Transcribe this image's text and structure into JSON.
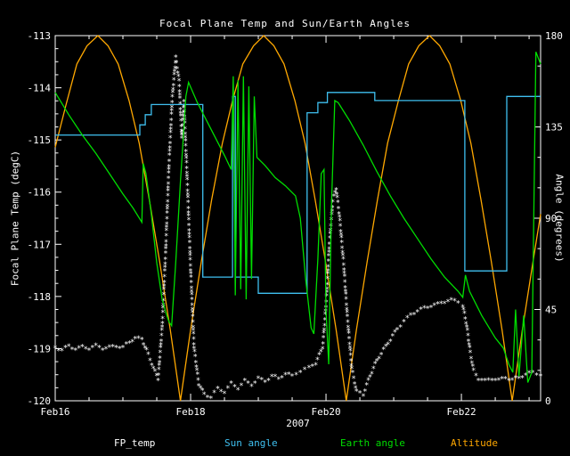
{
  "chart_data": {
    "type": "line",
    "title": "Focal Plane Temp and Sun/Earth Angles",
    "xlabel": "2007",
    "ylabel_left": "Focal Plane Temp (degC)",
    "ylabel_right": "Angle (degrees)",
    "x_range": [
      0,
      7.17
    ],
    "x_ticks": [
      {
        "t": 0,
        "label": "Feb16"
      },
      {
        "t": 2,
        "label": "Feb18"
      },
      {
        "t": 4,
        "label": "Feb20"
      },
      {
        "t": 6,
        "label": "Feb22"
      }
    ],
    "y_left_range": [
      -120,
      -113
    ],
    "y_left_ticks": [
      -113,
      -114,
      -115,
      -116,
      -117,
      -118,
      -119,
      -120
    ],
    "y_right_range": [
      0,
      180
    ],
    "y_right_ticks": [
      0,
      45,
      90,
      135,
      180
    ],
    "grid": false,
    "legend_position": "bottom",
    "legend": [
      {
        "label": "FP_temp",
        "color": "#ffffff"
      },
      {
        "label": "Sun angle",
        "color": "#3fc0f0"
      },
      {
        "label": "Earth angle",
        "color": "#00dd00"
      },
      {
        "label": "Altitude",
        "color": "#ffa800"
      }
    ],
    "series": [
      {
        "name": "Altitude",
        "color": "#ffa800",
        "axis": "right",
        "style": "line",
        "points": [
          [
            0,
            125
          ],
          [
            0.16,
            146
          ],
          [
            0.32,
            166
          ],
          [
            0.47,
            175
          ],
          [
            0.63,
            180
          ],
          [
            0.78,
            175
          ],
          [
            0.93,
            166
          ],
          [
            1.09,
            148
          ],
          [
            1.24,
            127
          ],
          [
            1.39,
            99
          ],
          [
            1.54,
            69
          ],
          [
            1.7,
            35
          ],
          [
            1.85,
            0
          ],
          [
            2.0,
            35
          ],
          [
            2.16,
            69
          ],
          [
            2.31,
            99
          ],
          [
            2.47,
            127
          ],
          [
            2.62,
            148
          ],
          [
            2.77,
            166
          ],
          [
            2.93,
            175
          ],
          [
            3.08,
            180
          ],
          [
            3.23,
            175
          ],
          [
            3.38,
            166
          ],
          [
            3.54,
            148
          ],
          [
            3.69,
            127
          ],
          [
            3.84,
            99
          ],
          [
            3.99,
            69
          ],
          [
            4.15,
            35
          ],
          [
            4.3,
            0
          ],
          [
            4.45,
            35
          ],
          [
            4.61,
            69
          ],
          [
            4.76,
            99
          ],
          [
            4.91,
            127
          ],
          [
            5.07,
            148
          ],
          [
            5.22,
            166
          ],
          [
            5.37,
            175
          ],
          [
            5.53,
            180
          ],
          [
            5.68,
            175
          ],
          [
            5.83,
            166
          ],
          [
            5.99,
            148
          ],
          [
            6.14,
            127
          ],
          [
            6.29,
            99
          ],
          [
            6.44,
            69
          ],
          [
            6.6,
            35
          ],
          [
            6.75,
            0
          ],
          [
            6.9,
            35
          ],
          [
            7.06,
            69
          ],
          [
            7.17,
            92
          ]
        ]
      },
      {
        "name": "FP_temp",
        "color": "#ffffff",
        "axis": "left",
        "style": "markers",
        "points": [
          [
            0.0,
            -119.0
          ],
          [
            0.1,
            -119.05
          ],
          [
            0.2,
            -118.98
          ],
          [
            0.3,
            -119.03
          ],
          [
            0.4,
            -119.0
          ],
          [
            0.5,
            -119.02
          ],
          [
            0.6,
            -118.97
          ],
          [
            0.7,
            -119.02
          ],
          [
            0.8,
            -119.0
          ],
          [
            0.9,
            -118.98
          ],
          [
            1.0,
            -119.0
          ],
          [
            1.1,
            -118.9
          ],
          [
            1.18,
            -118.82
          ],
          [
            1.28,
            -118.85
          ],
          [
            1.35,
            -119.05
          ],
          [
            1.45,
            -119.4
          ],
          [
            1.52,
            -119.6
          ],
          [
            1.58,
            -118.6
          ],
          [
            1.63,
            -117.2
          ],
          [
            1.68,
            -115.5
          ],
          [
            1.73,
            -114.2
          ],
          [
            1.78,
            -113.45
          ],
          [
            1.83,
            -113.9
          ],
          [
            1.87,
            -115.0
          ],
          [
            1.9,
            -114.3
          ],
          [
            1.95,
            -115.8
          ],
          [
            2.0,
            -117.5
          ],
          [
            2.05,
            -119.0
          ],
          [
            2.12,
            -119.7
          ],
          [
            2.2,
            -119.9
          ],
          [
            2.3,
            -119.95
          ],
          [
            2.4,
            -119.8
          ],
          [
            2.5,
            -119.85
          ],
          [
            2.6,
            -119.7
          ],
          [
            2.7,
            -119.78
          ],
          [
            2.8,
            -119.65
          ],
          [
            2.9,
            -119.72
          ],
          [
            3.0,
            -119.6
          ],
          [
            3.1,
            -119.65
          ],
          [
            3.2,
            -119.55
          ],
          [
            3.3,
            -119.6
          ],
          [
            3.4,
            -119.5
          ],
          [
            3.5,
            -119.55
          ],
          [
            3.62,
            -119.45
          ],
          [
            3.75,
            -119.4
          ],
          [
            3.85,
            -119.3
          ],
          [
            3.95,
            -119.0
          ],
          [
            4.0,
            -118.2
          ],
          [
            4.05,
            -117.0
          ],
          [
            4.1,
            -116.2
          ],
          [
            4.15,
            -115.95
          ],
          [
            4.2,
            -116.5
          ],
          [
            4.26,
            -117.4
          ],
          [
            4.32,
            -118.5
          ],
          [
            4.38,
            -119.4
          ],
          [
            4.45,
            -119.85
          ],
          [
            4.55,
            -119.9
          ],
          [
            4.65,
            -119.55
          ],
          [
            4.75,
            -119.25
          ],
          [
            4.85,
            -119.05
          ],
          [
            4.95,
            -118.85
          ],
          [
            5.05,
            -118.65
          ],
          [
            5.15,
            -118.5
          ],
          [
            5.25,
            -118.38
          ],
          [
            5.35,
            -118.3
          ],
          [
            5.45,
            -118.25
          ],
          [
            5.55,
            -118.2
          ],
          [
            5.65,
            -118.18
          ],
          [
            5.75,
            -118.12
          ],
          [
            5.85,
            -118.1
          ],
          [
            5.95,
            -118.12
          ],
          [
            6.02,
            -118.2
          ],
          [
            6.08,
            -118.6
          ],
          [
            6.13,
            -119.1
          ],
          [
            6.18,
            -119.45
          ],
          [
            6.25,
            -119.6
          ],
          [
            6.35,
            -119.65
          ],
          [
            6.45,
            -119.6
          ],
          [
            6.55,
            -119.63
          ],
          [
            6.65,
            -119.58
          ],
          [
            6.75,
            -119.62
          ],
          [
            6.85,
            -119.58
          ],
          [
            6.95,
            -119.52
          ],
          [
            7.05,
            -119.48
          ],
          [
            7.17,
            -119.52
          ]
        ]
      },
      {
        "name": "Sun angle",
        "color": "#3fc0f0",
        "axis": "right",
        "style": "line",
        "points": [
          [
            0,
            131
          ],
          [
            1.25,
            131
          ],
          [
            1.25,
            136
          ],
          [
            1.33,
            136
          ],
          [
            1.33,
            141
          ],
          [
            1.42,
            141
          ],
          [
            1.42,
            146
          ],
          [
            2.18,
            146
          ],
          [
            2.18,
            61
          ],
          [
            2.62,
            61
          ],
          [
            2.62,
            150
          ],
          [
            2.66,
            150
          ],
          [
            2.66,
            61
          ],
          [
            3.0,
            61
          ],
          [
            3.0,
            53
          ],
          [
            3.72,
            53
          ],
          [
            3.72,
            142
          ],
          [
            3.88,
            142
          ],
          [
            3.88,
            147
          ],
          [
            4.02,
            147
          ],
          [
            4.02,
            152
          ],
          [
            4.72,
            152
          ],
          [
            4.72,
            148
          ],
          [
            6.05,
            148
          ],
          [
            6.05,
            64
          ],
          [
            6.67,
            64
          ],
          [
            6.67,
            150
          ],
          [
            7.17,
            150
          ]
        ]
      },
      {
        "name": "Earth angle",
        "color": "#00dd00",
        "axis": "right",
        "style": "line",
        "points": [
          [
            0.0,
            152
          ],
          [
            0.2,
            141
          ],
          [
            0.4,
            131
          ],
          [
            0.6,
            122
          ],
          [
            0.8,
            112
          ],
          [
            1.0,
            102
          ],
          [
            1.15,
            95
          ],
          [
            1.28,
            88
          ],
          [
            1.3,
            117
          ],
          [
            1.34,
            112
          ],
          [
            1.42,
            92
          ],
          [
            1.5,
            68
          ],
          [
            1.58,
            50
          ],
          [
            1.63,
            44
          ],
          [
            1.68,
            39
          ],
          [
            1.72,
            37
          ],
          [
            1.78,
            68
          ],
          [
            1.85,
            108
          ],
          [
            1.93,
            150
          ],
          [
            1.97,
            157
          ],
          [
            2.1,
            147
          ],
          [
            2.3,
            134
          ],
          [
            2.5,
            121
          ],
          [
            2.6,
            114
          ],
          [
            2.63,
            160
          ],
          [
            2.66,
            52
          ],
          [
            2.7,
            158
          ],
          [
            2.74,
            55
          ],
          [
            2.78,
            160
          ],
          [
            2.82,
            50
          ],
          [
            2.86,
            155
          ],
          [
            2.9,
            60
          ],
          [
            2.94,
            150
          ],
          [
            2.98,
            120
          ],
          [
            3.1,
            116
          ],
          [
            3.25,
            110
          ],
          [
            3.4,
            106
          ],
          [
            3.55,
            101
          ],
          [
            3.62,
            90
          ],
          [
            3.7,
            60
          ],
          [
            3.78,
            36
          ],
          [
            3.82,
            33
          ],
          [
            3.88,
            70
          ],
          [
            3.93,
            112
          ],
          [
            3.97,
            114
          ],
          [
            4.0,
            45
          ],
          [
            4.04,
            18
          ],
          [
            4.08,
            95
          ],
          [
            4.13,
            148
          ],
          [
            4.18,
            147
          ],
          [
            4.35,
            138
          ],
          [
            4.55,
            126
          ],
          [
            4.75,
            113
          ],
          [
            4.95,
            101
          ],
          [
            5.15,
            90
          ],
          [
            5.35,
            80
          ],
          [
            5.55,
            70
          ],
          [
            5.75,
            61
          ],
          [
            5.95,
            54
          ],
          [
            6.02,
            51
          ],
          [
            6.06,
            62
          ],
          [
            6.12,
            54
          ],
          [
            6.3,
            42
          ],
          [
            6.5,
            31
          ],
          [
            6.62,
            26
          ],
          [
            6.7,
            18
          ],
          [
            6.76,
            14
          ],
          [
            6.8,
            45
          ],
          [
            6.85,
            12
          ],
          [
            6.92,
            42
          ],
          [
            6.98,
            9
          ],
          [
            7.04,
            14
          ],
          [
            7.1,
            172
          ],
          [
            7.17,
            166
          ]
        ]
      }
    ]
  }
}
